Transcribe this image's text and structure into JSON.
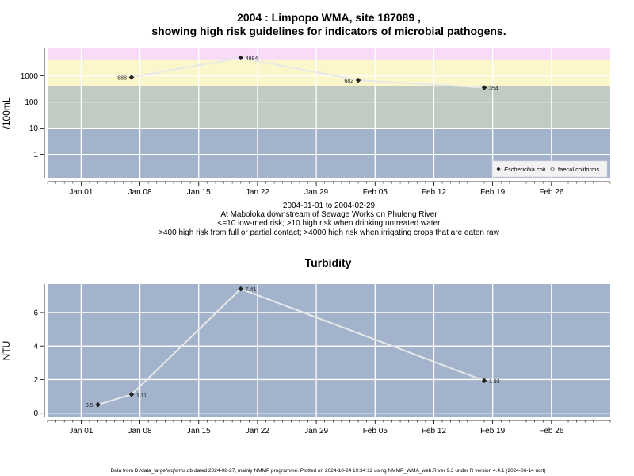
{
  "chart_data": [
    {
      "type": "line",
      "title_line1": "2004 : Limpopo WMA, site 187089 ,",
      "title_line2": "showing high risk guidelines for indicators of microbial pathogens.",
      "ylabel": "/100mL",
      "y_scale": "log",
      "ylim": [
        0.12,
        12000
      ],
      "yticks": [
        1,
        10,
        100,
        1000
      ],
      "ytick_labels": [
        "1",
        "10",
        "100",
        "1000"
      ],
      "xlim": [
        "2003-12-28",
        "2004-03-04"
      ],
      "xticks": [
        "2004-01-01",
        "2004-01-08",
        "2004-01-15",
        "2004-01-22",
        "2004-01-29",
        "2004-02-05",
        "2004-02-12",
        "2004-02-19",
        "2004-02-26"
      ],
      "xtick_labels": [
        "Jan 01",
        "Jan 08",
        "Jan 15",
        "Jan 22",
        "Jan 29",
        "Feb 05",
        "Feb 12",
        "Feb 19",
        "Feb 26"
      ],
      "bands": [
        {
          "from": 0.12,
          "to": 10,
          "color": "#a2b3cb"
        },
        {
          "from": 10,
          "to": 400,
          "color": "#c1cbc1"
        },
        {
          "from": 400,
          "to": 4000,
          "color": "#fbf7cb"
        },
        {
          "from": 4000,
          "to": 12000,
          "color": "#f7dbf7"
        }
      ],
      "series": [
        {
          "name": "Escherichia coli",
          "color": "#222222",
          "x": [
            "2004-01-07",
            "2004-01-20",
            "2004-02-03",
            "2004-02-18"
          ],
          "y": [
            888,
            4884,
            682,
            354
          ],
          "labels": [
            "888",
            "4884",
            "682",
            "354"
          ]
        }
      ],
      "legend": {
        "position": "bottom-right",
        "entries": [
          "Escherichia coli",
          "faecal coliforms"
        ]
      },
      "caption": [
        "2004-01-01 to 2004-02-29",
        "At Maboloka downstream of Sewage Works on Phuleng River",
        "<=10 low-med risk; >10 high risk when drinking untreated water",
        ">400 high risk from full or partial contact; >4000 high risk when irrigating crops that are eaten raw"
      ]
    },
    {
      "type": "line",
      "title": "Turbidity",
      "ylabel": "NTU",
      "ylim": [
        -0.25,
        7.7
      ],
      "yticks": [
        0,
        2,
        4,
        6
      ],
      "ytick_labels": [
        "0",
        "2",
        "4",
        "6"
      ],
      "xlim": [
        "2003-12-28",
        "2004-03-04"
      ],
      "xticks": [
        "2004-01-01",
        "2004-01-08",
        "2004-01-15",
        "2004-01-22",
        "2004-01-29",
        "2004-02-05",
        "2004-02-12",
        "2004-02-19",
        "2004-02-26"
      ],
      "xtick_labels": [
        "Jan 01",
        "Jan 08",
        "Jan 15",
        "Jan 22",
        "Jan 29",
        "Feb 05",
        "Feb 12",
        "Feb 19",
        "Feb 26"
      ],
      "background": "#a2b3cb",
      "series": [
        {
          "name": "",
          "color": "#222222",
          "x": [
            "2004-01-03",
            "2004-01-07",
            "2004-01-20",
            "2004-02-18"
          ],
          "y": [
            0.5,
            1.11,
            7.41,
            1.93
          ],
          "labels": [
            "0.5",
            "1.11",
            "7.41",
            "1.93"
          ]
        }
      ]
    }
  ],
  "footer": "Data from D:/data_large/wq/wms.db dated 2024-08-27, mainly NMMP programme. Plotted on 2024-10-24 19:34:12 using NMMP_WMA_web.R ver 9.3 under R version 4.4.1 (2024-06-14 ucrt)"
}
